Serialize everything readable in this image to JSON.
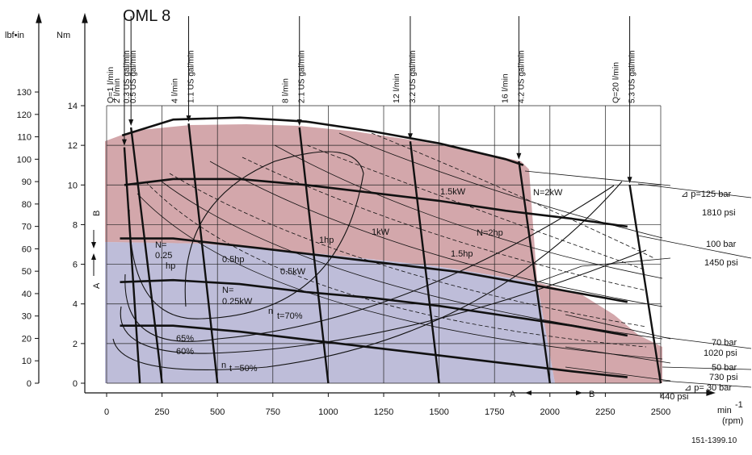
{
  "chart_data": {
    "type": "line",
    "title": "OML 8",
    "figure_id": "151-1399.10",
    "x_axis": {
      "label_line1": "min",
      "label_sup": "-1",
      "label_line2": "(rpm)",
      "range": [
        0,
        2500
      ],
      "ticks": [
        0,
        250,
        500,
        750,
        1000,
        1250,
        1500,
        1750,
        2000,
        2250,
        2500
      ]
    },
    "y_axis_nm": {
      "label": "Nm",
      "range": [
        0,
        14
      ],
      "ticks": [
        0,
        2,
        4,
        6,
        8,
        10,
        12,
        14
      ]
    },
    "y_axis_lbfin": {
      "label": "lbf•in",
      "nm_per_unit": 0.113,
      "ticks": [
        0,
        10,
        20,
        30,
        40,
        50,
        60,
        70,
        80,
        90,
        100,
        110,
        120,
        130
      ]
    },
    "flow_lines": [
      {
        "label": "Q=1 l/min",
        "us_label": "0.3 US gal/min",
        "points": [
          [
            80,
            11.9
          ],
          [
            150,
            0
          ]
        ]
      },
      {
        "label": "2 l/min",
        "us_label": "0.5 US gal/min",
        "points": [
          [
            110,
            12.9
          ],
          [
            250,
            0
          ]
        ]
      },
      {
        "label": "4 l/min",
        "us_label": "1.1 US gal/min",
        "points": [
          [
            370,
            13.1
          ],
          [
            500,
            0
          ]
        ]
      },
      {
        "label": "8 l/min",
        "us_label": "2.1 US gal/min",
        "points": [
          [
            870,
            12.9
          ],
          [
            1000,
            0
          ]
        ]
      },
      {
        "label": "12 l/min",
        "us_label": "3.2 US gal/min",
        "points": [
          [
            1370,
            12.2
          ],
          [
            1500,
            0
          ]
        ]
      },
      {
        "label": "16 l/min",
        "us_label": "4.2 US gal/min",
        "points": [
          [
            1860,
            11.2
          ],
          [
            2000,
            0
          ]
        ]
      },
      {
        "label": "Q=20 l/min",
        "us_label": "5.3 US gal/min",
        "points": [
          [
            2360,
            10.0
          ],
          [
            2500,
            0
          ]
        ]
      }
    ],
    "pressure_lines": [
      {
        "label": "⊿ p=125 bar",
        "psi": "1810 psi"
      },
      {
        "label": "100 bar",
        "psi": "1450 psi"
      },
      {
        "label": "70 bar",
        "psi": "1020 psi"
      },
      {
        "label": "50 bar",
        "psi": "730 psi"
      },
      {
        "label": "⊿ p= 30 bar",
        "psi": "440 psi"
      }
    ],
    "series": [
      {
        "points": [
          [
            70,
            12.5
          ],
          [
            300,
            13.3
          ],
          [
            600,
            13.4
          ],
          [
            900,
            13.2
          ],
          [
            1200,
            12.7
          ],
          [
            1500,
            12.1
          ],
          [
            1800,
            11.3
          ],
          [
            1880,
            11.0
          ]
        ]
      },
      {
        "points": [
          [
            80,
            10.0
          ],
          [
            300,
            10.3
          ],
          [
            600,
            10.3
          ],
          [
            900,
            10.0
          ],
          [
            1200,
            9.6
          ],
          [
            1500,
            9.2
          ],
          [
            1800,
            8.7
          ],
          [
            2100,
            8.3
          ],
          [
            2350,
            7.9
          ]
        ]
      },
      {
        "points": [
          [
            60,
            7.3
          ],
          [
            300,
            7.3
          ],
          [
            700,
            6.8
          ],
          [
            1000,
            6.4
          ],
          [
            1300,
            6.0
          ],
          [
            1600,
            5.6
          ],
          [
            1900,
            5.0
          ],
          [
            2100,
            4.6
          ],
          [
            2350,
            4.1
          ]
        ]
      },
      {
        "points": [
          [
            60,
            5.1
          ],
          [
            300,
            5.2
          ],
          [
            600,
            5.0
          ],
          [
            900,
            4.6
          ],
          [
            1200,
            4.3
          ],
          [
            1500,
            3.9
          ],
          [
            1800,
            3.4
          ],
          [
            2100,
            2.9
          ],
          [
            2350,
            2.4
          ]
        ]
      },
      {
        "points": [
          [
            60,
            2.9
          ],
          [
            300,
            2.9
          ],
          [
            600,
            2.6
          ],
          [
            900,
            2.2
          ],
          [
            1200,
            1.8
          ],
          [
            1500,
            1.4
          ],
          [
            1800,
            1.0
          ],
          [
            2100,
            0.6
          ],
          [
            2350,
            0.3
          ]
        ]
      }
    ],
    "power_labels": [
      "N=2kW",
      "1.5kW",
      "1kW",
      "0.5kW",
      "N=\n0.25kW",
      "N=2hp",
      "1.5hp",
      "1hp",
      "0.5hp",
      "N=\n0.25\nhp"
    ],
    "efficiency_labels": [
      "n t=70%",
      "65%",
      "60%",
      "n t =50%"
    ],
    "region_labels": {
      "a": "A",
      "b": "B",
      "a_axis": "A",
      "b_axis": "B"
    },
    "colors": {
      "upper_region": "#c48a8f",
      "lower_region": "#a8a7cc",
      "curve": "#111111"
    }
  }
}
